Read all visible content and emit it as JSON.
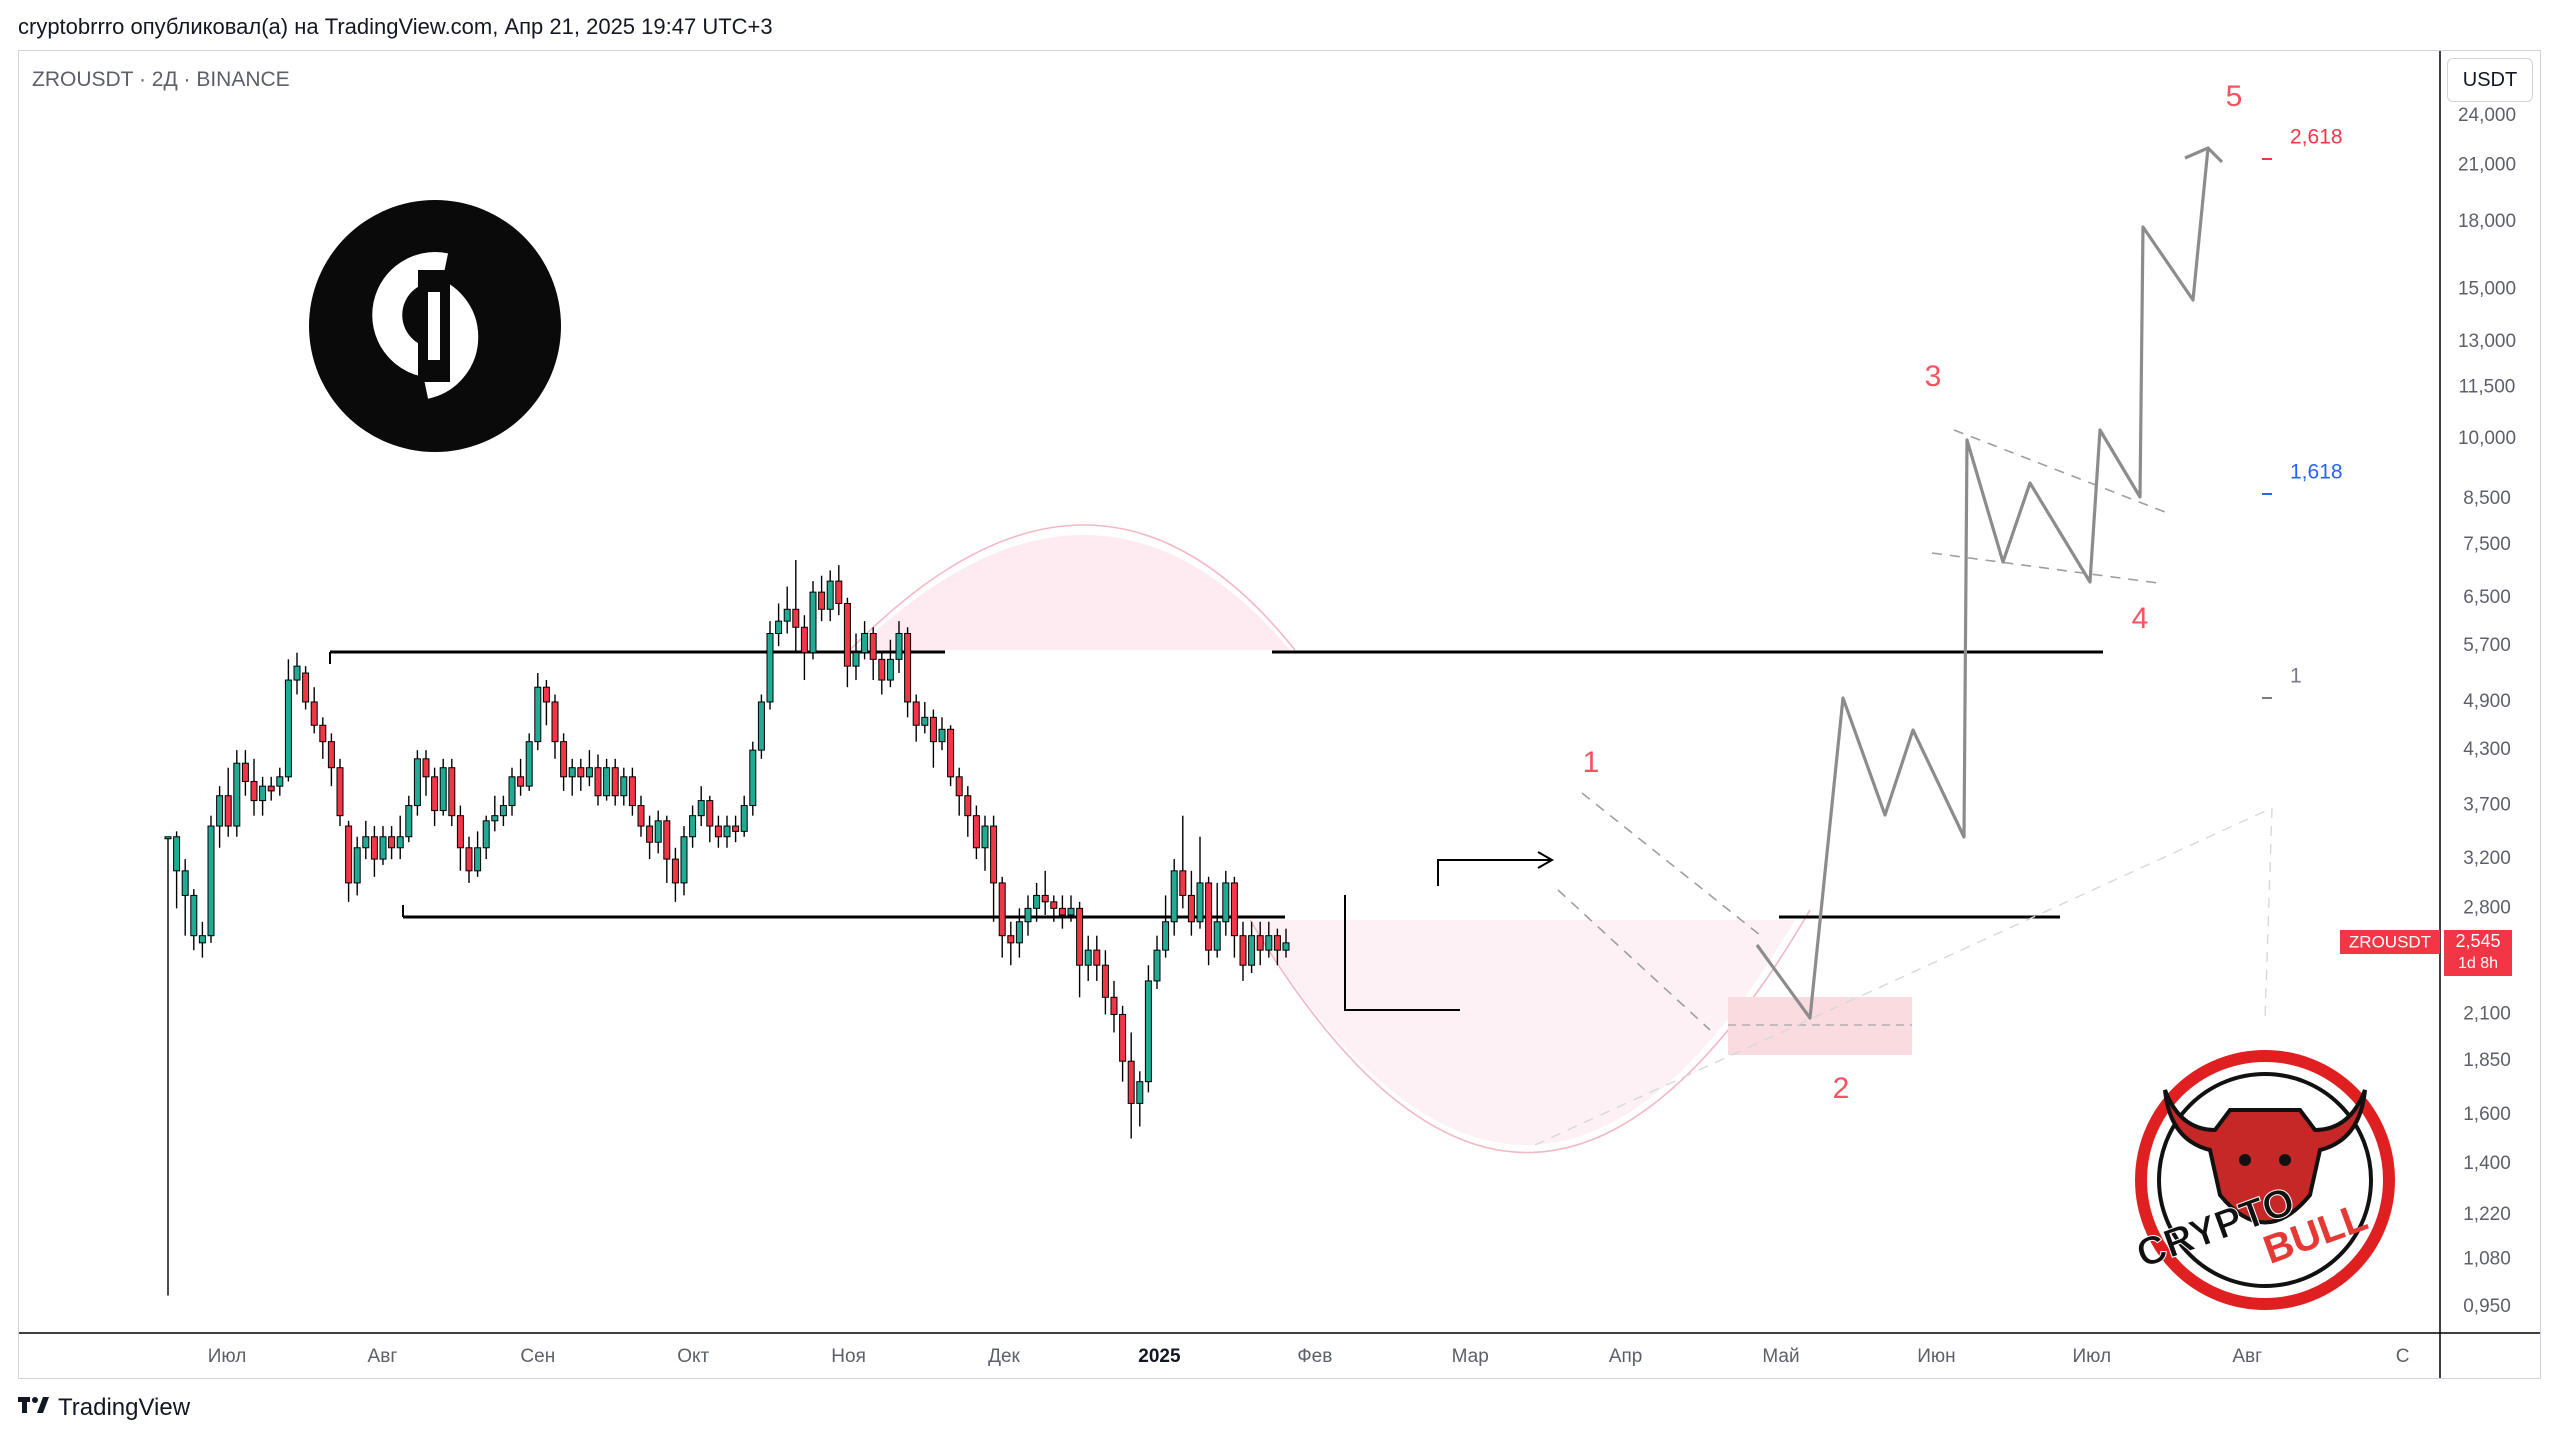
{
  "header": {
    "text": "cryptobrrro опубликовал(а) на TradingView.com, Апр 21, 2025 19:47 UTC+3"
  },
  "symbol_label": "ZROUSDT · 2Д · BINANCE",
  "unit_button": "USDT",
  "footer": {
    "brand": "TradingView",
    "icon": "tradingview-logo-icon"
  },
  "logo_badge": {
    "icon": "layerzero-logo-icon"
  },
  "watermark": {
    "text_1": "CRYPTO",
    "text_2": "BULL",
    "icon": "bull-head-icon"
  },
  "price_tag": {
    "symbol": "ZROUSDT",
    "price": "2,545",
    "countdown": "1d 8h",
    "color": "#f23645"
  },
  "colors": {
    "up": "#22ab94",
    "down": "#f23645",
    "projection": "#8c8c8c",
    "wave_label": "#f7525f"
  },
  "fib_labels": [
    {
      "text": "2,618",
      "color": "#f23645"
    },
    {
      "text": "1,618",
      "color": "#2962ff"
    },
    {
      "text": "1",
      "color": "#787b86"
    }
  ],
  "wave_labels": [
    "1",
    "2",
    "3",
    "4",
    "5"
  ],
  "chart_data": {
    "type": "candlestick",
    "title": "ZROUSDT · 2Д · BINANCE",
    "y_scale": "log",
    "ylim": [
      0.88,
      26.5
    ],
    "y_ticks": [
      "24,000",
      "21,000",
      "18,000",
      "15,000",
      "13,000",
      "11,500",
      "10,000",
      "8,500",
      "7,500",
      "6,500",
      "5,700",
      "4,900",
      "4,300",
      "3,700",
      "3,200",
      "2,800",
      "2,100",
      "1,850",
      "1,600",
      "1,400",
      "1,220",
      "1,080",
      "0,950"
    ],
    "y_tick_values": [
      24,
      21,
      18,
      15,
      13,
      11.5,
      10,
      8.5,
      7.5,
      6.5,
      5.7,
      4.9,
      4.3,
      3.7,
      3.2,
      2.8,
      2.1,
      1.85,
      1.6,
      1.4,
      1.22,
      1.08,
      0.95
    ],
    "x_ticks": [
      "Июл",
      "Авг",
      "Сен",
      "Окт",
      "Ноя",
      "Дек",
      "2025",
      "Фев",
      "Мар",
      "Апр",
      "Май",
      "Июн",
      "Июл",
      "Авг",
      "С"
    ],
    "x_tick_months": [
      0,
      1,
      2,
      3,
      4,
      5,
      6,
      7,
      8,
      9,
      10,
      11,
      12,
      13,
      14
    ],
    "candles": [
      [
        3.4,
        3.4,
        3.4,
        0.98
      ],
      [
        3.1,
        3.4,
        3.45,
        2.8
      ],
      [
        2.9,
        3.1,
        3.2,
        2.6
      ],
      [
        2.6,
        2.9,
        2.95,
        2.5
      ],
      [
        2.55,
        2.6,
        2.7,
        2.45
      ],
      [
        2.6,
        3.5,
        3.6,
        2.55
      ],
      [
        3.5,
        3.8,
        3.9,
        3.3
      ],
      [
        3.8,
        3.5,
        4.1,
        3.4
      ],
      [
        3.5,
        4.15,
        4.3,
        3.4
      ],
      [
        4.15,
        3.95,
        4.3,
        3.8
      ],
      [
        3.95,
        3.75,
        4.2,
        3.6
      ],
      [
        3.75,
        3.9,
        4.0,
        3.6
      ],
      [
        3.9,
        3.85,
        4.0,
        3.75
      ],
      [
        3.9,
        4.0,
        4.1,
        3.8
      ],
      [
        4.0,
        5.2,
        5.5,
        3.95
      ],
      [
        5.2,
        5.4,
        5.6,
        5.0
      ],
      [
        5.3,
        4.9,
        5.4,
        4.8
      ],
      [
        4.9,
        4.6,
        5.1,
        4.5
      ],
      [
        4.6,
        4.4,
        4.7,
        4.2
      ],
      [
        4.4,
        4.1,
        4.5,
        3.9
      ],
      [
        4.1,
        3.6,
        4.2,
        3.5
      ],
      [
        3.5,
        3.0,
        3.55,
        2.85
      ],
      [
        3.0,
        3.3,
        3.4,
        2.9
      ],
      [
        3.3,
        3.4,
        3.55,
        3.2
      ],
      [
        3.4,
        3.2,
        3.5,
        3.05
      ],
      [
        3.2,
        3.4,
        3.5,
        3.15
      ],
      [
        3.4,
        3.3,
        3.5,
        3.2
      ],
      [
        3.3,
        3.4,
        3.6,
        3.2
      ],
      [
        3.4,
        3.7,
        3.8,
        3.35
      ],
      [
        3.7,
        4.2,
        4.3,
        3.6
      ],
      [
        4.2,
        4.0,
        4.3,
        3.8
      ],
      [
        4.0,
        3.65,
        4.1,
        3.5
      ],
      [
        3.65,
        4.1,
        4.2,
        3.6
      ],
      [
        4.1,
        3.6,
        4.2,
        3.5
      ],
      [
        3.6,
        3.3,
        3.7,
        3.1
      ],
      [
        3.3,
        3.1,
        3.4,
        3.0
      ],
      [
        3.1,
        3.3,
        3.45,
        3.05
      ],
      [
        3.3,
        3.55,
        3.6,
        3.2
      ],
      [
        3.55,
        3.6,
        3.8,
        3.45
      ],
      [
        3.6,
        3.7,
        3.8,
        3.5
      ],
      [
        3.7,
        4.0,
        4.1,
        3.6
      ],
      [
        4.0,
        3.9,
        4.2,
        3.8
      ],
      [
        3.9,
        4.4,
        4.5,
        3.85
      ],
      [
        4.4,
        5.1,
        5.3,
        4.3
      ],
      [
        5.1,
        4.9,
        5.2,
        4.6
      ],
      [
        4.9,
        4.4,
        5.0,
        4.2
      ],
      [
        4.4,
        4.0,
        4.5,
        3.85
      ],
      [
        4.0,
        4.1,
        4.2,
        3.8
      ],
      [
        4.1,
        4.0,
        4.2,
        3.85
      ],
      [
        4.0,
        4.1,
        4.3,
        3.9
      ],
      [
        4.1,
        3.8,
        4.25,
        3.7
      ],
      [
        3.8,
        4.1,
        4.2,
        3.75
      ],
      [
        4.1,
        3.8,
        4.2,
        3.7
      ],
      [
        3.8,
        4.0,
        4.1,
        3.7
      ],
      [
        4.0,
        3.7,
        4.1,
        3.6
      ],
      [
        3.7,
        3.5,
        3.8,
        3.4
      ],
      [
        3.5,
        3.35,
        3.6,
        3.2
      ],
      [
        3.35,
        3.55,
        3.65,
        3.25
      ],
      [
        3.55,
        3.2,
        3.6,
        3.0
      ],
      [
        3.2,
        3.0,
        3.3,
        2.85
      ],
      [
        3.0,
        3.4,
        3.5,
        2.9
      ],
      [
        3.4,
        3.6,
        3.7,
        3.3
      ],
      [
        3.6,
        3.75,
        3.9,
        3.5
      ],
      [
        3.75,
        3.5,
        3.8,
        3.35
      ],
      [
        3.5,
        3.4,
        3.6,
        3.3
      ],
      [
        3.4,
        3.5,
        3.6,
        3.3
      ],
      [
        3.5,
        3.45,
        3.6,
        3.35
      ],
      [
        3.45,
        3.7,
        3.8,
        3.4
      ],
      [
        3.7,
        4.3,
        4.4,
        3.6
      ],
      [
        4.3,
        4.9,
        5.0,
        4.2
      ],
      [
        4.9,
        5.9,
        6.1,
        4.8
      ],
      [
        5.9,
        6.1,
        6.4,
        5.7
      ],
      [
        6.1,
        6.3,
        6.7,
        5.9
      ],
      [
        6.3,
        6.0,
        7.2,
        5.6
      ],
      [
        6.0,
        5.6,
        6.2,
        5.2
      ],
      [
        5.6,
        6.6,
        6.8,
        5.5
      ],
      [
        6.6,
        6.3,
        6.9,
        6.1
      ],
      [
        6.3,
        6.8,
        7.0,
        6.1
      ],
      [
        6.8,
        6.4,
        7.1,
        6.2
      ],
      [
        6.4,
        5.4,
        6.5,
        5.1
      ],
      [
        5.4,
        5.6,
        5.9,
        5.2
      ],
      [
        5.6,
        5.9,
        6.1,
        5.5
      ],
      [
        5.9,
        5.5,
        6.0,
        5.2
      ],
      [
        5.5,
        5.2,
        5.6,
        5.0
      ],
      [
        5.2,
        5.5,
        5.8,
        5.1
      ],
      [
        5.5,
        5.9,
        6.1,
        5.3
      ],
      [
        5.9,
        4.9,
        6.0,
        4.7
      ],
      [
        4.9,
        4.6,
        5.0,
        4.4
      ],
      [
        4.6,
        4.7,
        4.9,
        4.5
      ],
      [
        4.7,
        4.4,
        4.8,
        4.1
      ],
      [
        4.4,
        4.55,
        4.7,
        4.3
      ],
      [
        4.55,
        4.0,
        4.6,
        3.9
      ],
      [
        4.0,
        3.8,
        4.1,
        3.6
      ],
      [
        3.8,
        3.6,
        3.9,
        3.4
      ],
      [
        3.6,
        3.3,
        3.7,
        3.2
      ],
      [
        3.3,
        3.5,
        3.6,
        3.1
      ],
      [
        3.5,
        3.0,
        3.6,
        2.7
      ],
      [
        3.0,
        2.6,
        3.05,
        2.45
      ],
      [
        2.6,
        2.55,
        2.7,
        2.4
      ],
      [
        2.55,
        2.7,
        2.8,
        2.45
      ],
      [
        2.7,
        2.8,
        2.9,
        2.6
      ],
      [
        2.8,
        2.9,
        3.0,
        2.7
      ],
      [
        2.9,
        2.85,
        3.1,
        2.75
      ],
      [
        2.85,
        2.8,
        2.9,
        2.7
      ],
      [
        2.8,
        2.75,
        2.9,
        2.65
      ],
      [
        2.75,
        2.8,
        2.9,
        2.7
      ],
      [
        2.8,
        2.4,
        2.85,
        2.2
      ],
      [
        2.4,
        2.5,
        2.6,
        2.3
      ],
      [
        2.5,
        2.4,
        2.6,
        2.3
      ],
      [
        2.4,
        2.2,
        2.5,
        2.1
      ],
      [
        2.2,
        2.1,
        2.3,
        2.0
      ],
      [
        2.1,
        1.85,
        2.15,
        1.75
      ],
      [
        1.85,
        1.65,
        2.0,
        1.5
      ],
      [
        1.65,
        1.75,
        1.8,
        1.55
      ],
      [
        1.75,
        2.3,
        2.4,
        1.7
      ],
      [
        2.3,
        2.5,
        2.6,
        2.25
      ],
      [
        2.5,
        2.7,
        2.9,
        2.45
      ],
      [
        2.7,
        3.1,
        3.2,
        2.6
      ],
      [
        3.1,
        2.9,
        3.6,
        2.8
      ],
      [
        2.9,
        2.7,
        3.1,
        2.6
      ],
      [
        2.7,
        3.0,
        3.4,
        2.65
      ],
      [
        3.0,
        2.5,
        3.05,
        2.4
      ],
      [
        2.5,
        2.7,
        3.0,
        2.45
      ],
      [
        2.7,
        3.0,
        3.1,
        2.6
      ],
      [
        3.0,
        2.6,
        3.05,
        2.45
      ],
      [
        2.6,
        2.4,
        2.7,
        2.3
      ],
      [
        2.4,
        2.6,
        2.7,
        2.35
      ],
      [
        2.6,
        2.5,
        2.7,
        2.4
      ],
      [
        2.5,
        2.6,
        2.7,
        2.45
      ],
      [
        2.6,
        2.5,
        2.65,
        2.4
      ],
      [
        2.5,
        2.55,
        2.65,
        2.45
      ]
    ]
  }
}
